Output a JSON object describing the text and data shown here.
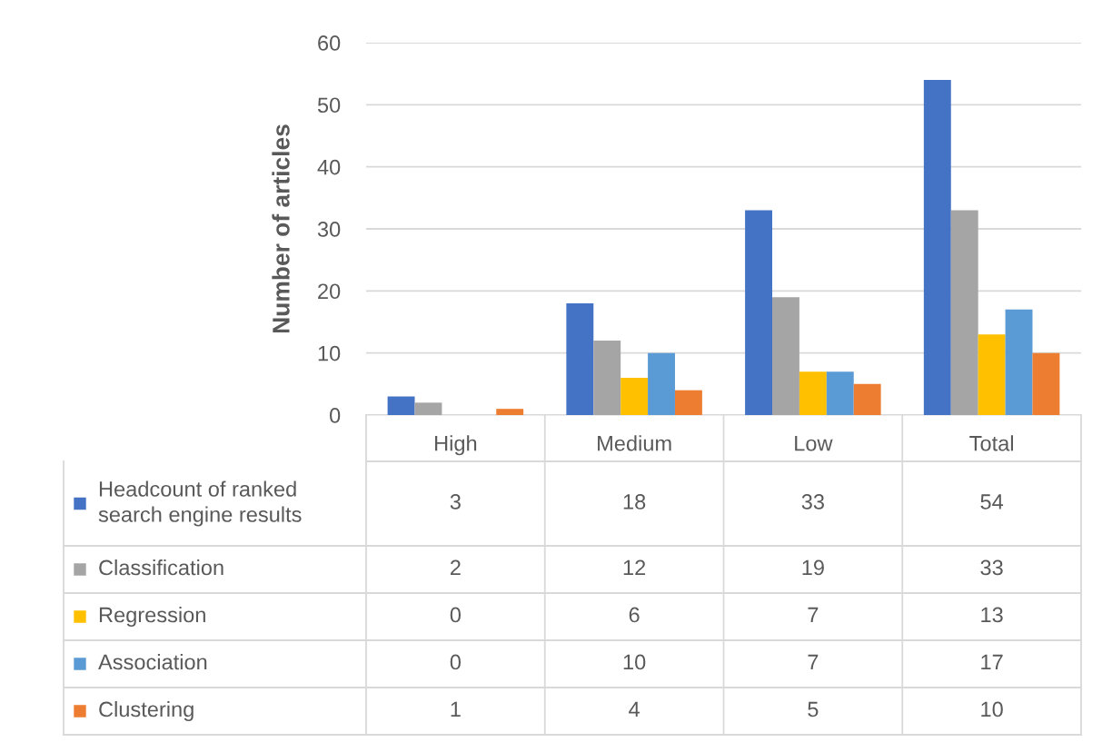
{
  "chart_data": {
    "type": "bar",
    "ylabel": "Number of articles",
    "categories": [
      "High",
      "Medium",
      "Low",
      "Total"
    ],
    "series": [
      {
        "name": "Headcount of ranked search engine results",
        "color": "#4472c4",
        "values": [
          3,
          18,
          33,
          54
        ]
      },
      {
        "name": "Classification",
        "color": "#a5a5a5",
        "values": [
          2,
          12,
          19,
          33
        ]
      },
      {
        "name": "Regression",
        "color": "#ffc000",
        "values": [
          0,
          6,
          7,
          13
        ]
      },
      {
        "name": "Association",
        "color": "#5b9bd5",
        "values": [
          0,
          10,
          7,
          17
        ]
      },
      {
        "name": "Clustering",
        "color": "#ed7d31",
        "values": [
          1,
          4,
          5,
          10
        ]
      }
    ],
    "ylim": [
      0,
      60
    ],
    "yticks": [
      0,
      10,
      20,
      30,
      40,
      50,
      60
    ],
    "grid": "y",
    "legend": "bottom",
    "data_labels": true
  }
}
